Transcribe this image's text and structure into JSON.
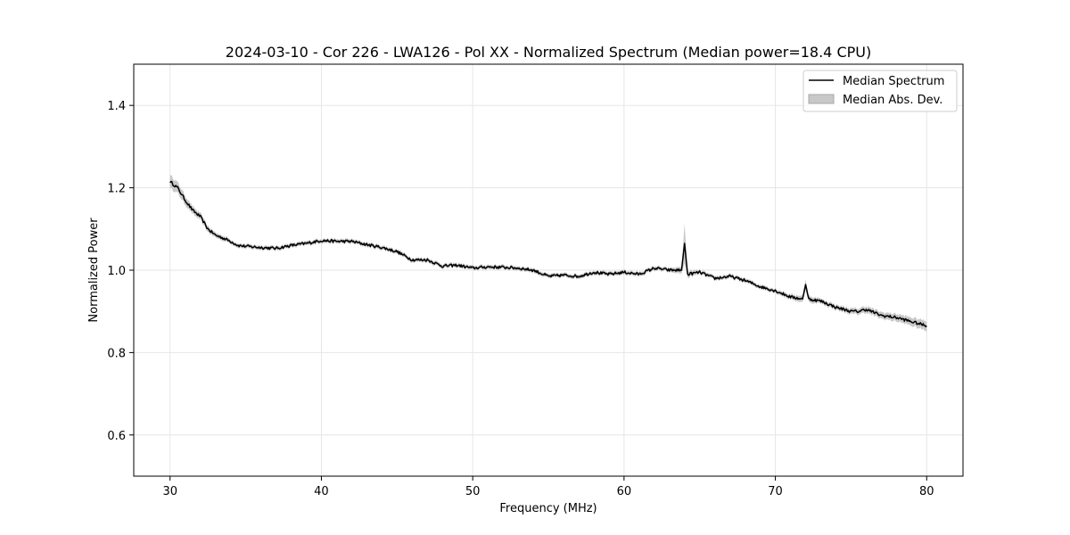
{
  "chart_data": {
    "type": "line",
    "title": "2024-03-10 - Cor 226 - LWA126 - Pol XX - Normalized Spectrum (Median power=18.4 CPU)",
    "xlabel": "Frequency (MHz)",
    "ylabel": "Normalized Power",
    "xlim": [
      27.6,
      82.4
    ],
    "ylim": [
      0.5,
      1.5
    ],
    "xticks": [
      30,
      40,
      50,
      60,
      70,
      80
    ],
    "yticks": [
      0.6,
      0.8,
      1.0,
      1.2,
      1.4
    ],
    "xtick_labels": [
      "30",
      "40",
      "50",
      "60",
      "70",
      "80"
    ],
    "ytick_labels": [
      "0.6",
      "0.8",
      "1.0",
      "1.2",
      "1.4"
    ],
    "grid": true,
    "legend_position": "top-right",
    "series": [
      {
        "name": "Median Spectrum",
        "color": "#000000",
        "x": [
          30.0,
          30.5,
          31.0,
          31.5,
          32.0,
          32.5,
          33.0,
          33.5,
          34.0,
          34.5,
          35.0,
          36.0,
          37.0,
          38.0,
          39.0,
          40.0,
          41.0,
          42.0,
          43.0,
          44.0,
          45.0,
          46.0,
          47.0,
          48.0,
          49.0,
          50.0,
          51.0,
          52.0,
          53.0,
          54.0,
          55.0,
          56.0,
          57.0,
          58.0,
          59.0,
          60.0,
          61.0,
          62.0,
          63.0,
          63.8,
          64.0,
          64.2,
          65.0,
          66.0,
          67.0,
          68.0,
          69.0,
          70.0,
          71.0,
          71.8,
          72.0,
          72.2,
          73.0,
          74.0,
          75.0,
          75.5,
          76.0,
          77.0,
          78.0,
          79.0,
          80.0
        ],
        "values": [
          1.215,
          1.2,
          1.17,
          1.145,
          1.13,
          1.1,
          1.085,
          1.078,
          1.07,
          1.06,
          1.058,
          1.055,
          1.053,
          1.06,
          1.065,
          1.072,
          1.07,
          1.07,
          1.062,
          1.055,
          1.045,
          1.025,
          1.025,
          1.01,
          1.012,
          1.005,
          1.008,
          1.007,
          1.005,
          1.0,
          0.985,
          0.988,
          0.985,
          0.995,
          0.99,
          0.995,
          0.99,
          1.005,
          1.0,
          1.0,
          1.065,
          0.99,
          0.995,
          0.98,
          0.985,
          0.975,
          0.96,
          0.95,
          0.935,
          0.93,
          0.965,
          0.93,
          0.925,
          0.91,
          0.9,
          0.9,
          0.905,
          0.89,
          0.885,
          0.875,
          0.865
        ]
      }
    ],
    "band": {
      "name": "Median Abs. Dev.",
      "color": "#c8c8c8",
      "half_width": [
        0.016,
        0.013,
        0.011,
        0.009,
        0.008,
        0.007,
        0.006,
        0.006,
        0.005,
        0.005,
        0.005,
        0.005,
        0.005,
        0.005,
        0.005,
        0.005,
        0.005,
        0.005,
        0.005,
        0.005,
        0.005,
        0.005,
        0.005,
        0.005,
        0.005,
        0.005,
        0.005,
        0.005,
        0.005,
        0.005,
        0.005,
        0.005,
        0.005,
        0.005,
        0.005,
        0.005,
        0.005,
        0.005,
        0.005,
        0.008,
        0.048,
        0.008,
        0.005,
        0.005,
        0.005,
        0.005,
        0.005,
        0.005,
        0.006,
        0.008,
        0.012,
        0.008,
        0.006,
        0.006,
        0.007,
        0.007,
        0.008,
        0.008,
        0.009,
        0.01,
        0.012
      ]
    },
    "legend": [
      "Median Spectrum",
      "Median Abs. Dev."
    ]
  }
}
